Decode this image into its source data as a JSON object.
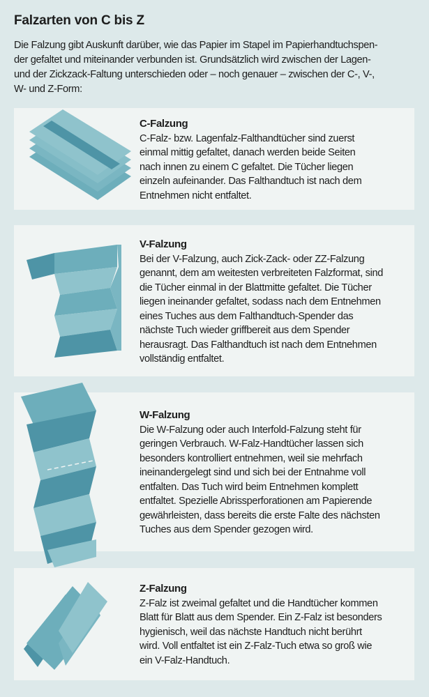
{
  "title": "Falzarten von C bis Z",
  "intro": [
    "Die Falzung gibt Auskunft darüber, wie das Papier im Stapel im Papierhandtuchspen-",
    "der gefaltet und miteinander verbunden ist. Grundsätzlich wird zwischen der Lagen-",
    "und der Zickzack-Faltung unterschieden oder – noch genauer – zwischen der C-, V-,",
    "W- und Z-Form:"
  ],
  "colors": {
    "background": "#dde9ea",
    "card": "#f0f4f3",
    "teal_light": "#8fc3cc",
    "teal_mid": "#6daebb",
    "teal_dark": "#4e94a6"
  },
  "cards": [
    {
      "heading": "C-Falzung",
      "illustration": "c-fold-towel-icon",
      "lines": [
        "C-Falz- bzw. Lagenfalz-Falthandtücher sind zuerst",
        "einmal mittig gefaltet, danach werden beide Seiten",
        "nach innen zu einem C gefaltet. Die Tücher liegen",
        "einzeln aufeinander. Das Falthandtuch ist nach dem",
        "Entnehmen nicht entfaltet."
      ]
    },
    {
      "heading": "V-Falzung",
      "illustration": "v-fold-towel-icon",
      "lines": [
        "Bei der V-Falzung, auch Zick-Zack- oder ZZ-Falzung",
        "genannt, dem am weitesten verbreiteten Falzformat, sind",
        "die Tücher einmal in der Blattmitte gefaltet. Die Tücher",
        "liegen ineinander gefaltet, sodass nach dem Entnehmen",
        "eines Tuches aus dem Falthandtuch-Spender das",
        "nächste Tuch wieder griffbereit aus dem Spender",
        "herausragt. Das Falthandtuch ist nach dem Entnehmen",
        "vollständig entfaltet."
      ]
    },
    {
      "heading": "W-Falzung",
      "illustration": "w-fold-towel-icon",
      "lines": [
        "Die W-Falzung oder auch Interfold-Falzung steht für",
        "geringen Verbrauch. W-Falz-Handtücher lassen sich",
        "besonders kontrolliert entnehmen, weil sie mehrfach",
        "ineinandergelegt sind und sich bei der Entnahme voll",
        "entfalten. Das Tuch wird beim Entnehmen komplett",
        "entfaltet. Spezielle Abrissperforationen am Papierende",
        "gewährleisten, dass bereits die erste Falte des nächsten",
        "Tuches aus dem Spender gezogen wird."
      ]
    },
    {
      "heading": "Z-Falzung",
      "illustration": "z-fold-towel-icon",
      "lines": [
        "Z-Falz ist zweimal gefaltet und die Handtücher kommen",
        "Blatt für Blatt aus dem Spender. Ein Z-Falz ist besonders",
        "hygienisch, weil das nächste Handtuch nicht berührt",
        "wird. Voll entfaltet ist ein Z-Falz-Tuch etwa so groß wie",
        "ein V-Falz-Handtuch."
      ]
    }
  ]
}
